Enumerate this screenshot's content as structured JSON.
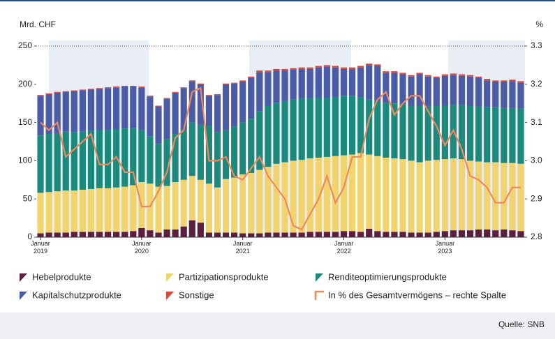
{
  "chart_data": {
    "type": "bar",
    "stacked": true,
    "y_label": "Mrd. CHF",
    "y2_label": "%",
    "source": "Quelle: SNB",
    "categories": [
      "Januar 2019",
      null,
      null,
      null,
      null,
      null,
      null,
      null,
      null,
      null,
      null,
      null,
      "Januar 2020",
      null,
      null,
      null,
      null,
      null,
      null,
      null,
      null,
      null,
      null,
      null,
      "Januar 2021",
      null,
      null,
      null,
      null,
      null,
      null,
      null,
      null,
      null,
      null,
      null,
      "Januar 2022",
      null,
      null,
      null,
      null,
      null,
      null,
      null,
      null,
      null,
      null,
      null,
      "Januar 2023",
      null,
      null,
      null,
      null,
      null,
      null,
      null,
      null,
      null
    ],
    "ylim": [
      0,
      250
    ],
    "yticks": [
      0,
      50,
      100,
      150,
      200,
      250
    ],
    "y2lim": [
      2.8,
      3.3
    ],
    "y2ticks": [
      2.8,
      2.9,
      {
        "value": 3.0,
        "label": "3.0"
      },
      3.1,
      3.2,
      3.3
    ],
    "series": [
      {
        "name": "Hebelprodukte",
        "color": "#5c1f40",
        "values": [
          5,
          6,
          6,
          6,
          7,
          7,
          7,
          7,
          7,
          7,
          7,
          8,
          12,
          9,
          6,
          10,
          10,
          14,
          22,
          19,
          6,
          6,
          6,
          6,
          5,
          5,
          5,
          6,
          6,
          6,
          6,
          6,
          7,
          7,
          7,
          7,
          8,
          8,
          7,
          11,
          8,
          7,
          7,
          7,
          6,
          6,
          6,
          7,
          8,
          9,
          9,
          9,
          10,
          10,
          9,
          10,
          9,
          8
        ]
      },
      {
        "name": "Partizipationsprodukte",
        "color": "#f2d46e",
        "values": [
          53,
          53,
          54,
          55,
          54,
          55,
          56,
          57,
          57,
          58,
          59,
          60,
          60,
          61,
          60,
          57,
          62,
          61,
          58,
          56,
          64,
          59,
          70,
          72,
          77,
          79,
          83,
          86,
          90,
          92,
          94,
          95,
          96,
          97,
          98,
          99,
          99,
          100,
          103,
          97,
          98,
          97,
          96,
          95,
          94,
          92,
          94,
          94,
          94,
          94,
          93,
          91,
          89,
          88,
          89,
          87,
          88,
          88
        ]
      },
      {
        "name": "Renditeoptimierungsprodukte",
        "color": "#1b8a7c",
        "values": [
          75,
          76,
          76,
          77,
          76,
          76,
          76,
          76,
          76,
          76,
          76,
          75,
          68,
          62,
          56,
          61,
          63,
          65,
          70,
          72,
          76,
          72,
          64,
          67,
          68,
          71,
          77,
          80,
          80,
          80,
          80,
          80,
          79,
          78,
          77,
          77,
          78,
          77,
          73,
          72,
          72,
          72,
          72,
          72,
          72,
          74,
          71,
          71,
          70,
          70,
          71,
          72,
          72,
          72,
          72,
          72,
          72,
          72
        ]
      },
      {
        "name": "Kapitalschutzprodukte",
        "color": "#4a5ba8",
        "values": [
          52,
          52,
          53,
          52,
          54,
          54,
          54,
          54,
          55,
          55,
          55,
          54,
          56,
          52,
          49,
          53,
          54,
          55,
          54,
          53,
          39,
          49,
          60,
          56,
          53,
          53,
          51,
          44,
          42,
          40,
          39,
          39,
          38,
          40,
          41,
          39,
          35,
          35,
          39,
          45,
          46,
          39,
          40,
          39,
          38,
          41,
          39,
          36,
          39,
          39,
          38,
          38,
          37,
          35,
          33,
          34,
          35,
          34
        ]
      },
      {
        "name": "Sonstige",
        "color": "#d9473a",
        "values": [
          1,
          1,
          1,
          1,
          1,
          1,
          1,
          1,
          1,
          1,
          1,
          1,
          1,
          1,
          1,
          1,
          1,
          1,
          1,
          1,
          1,
          1,
          1,
          1,
          2,
          2,
          2,
          2,
          2,
          2,
          2,
          2,
          2,
          2,
          2,
          2,
          2,
          2,
          2,
          2,
          2,
          2,
          2,
          2,
          2,
          2,
          2,
          2,
          2,
          2,
          2,
          2,
          2,
          2,
          2,
          2,
          2,
          2
        ]
      },
      {
        "name": "In % des Gesamtvermögens – rechte Spalte",
        "type": "line",
        "axis": "y2",
        "color": "#f0885c",
        "values": [
          3.1,
          3.08,
          3.1,
          3.01,
          3.03,
          3.05,
          3.07,
          2.99,
          2.99,
          3.01,
          2.97,
          2.97,
          2.88,
          2.88,
          2.92,
          2.97,
          3.06,
          3.08,
          3.18,
          3.19,
          3.0,
          3.0,
          3.01,
          2.96,
          2.95,
          2.98,
          3.01,
          2.96,
          2.93,
          2.9,
          2.83,
          2.82,
          2.86,
          2.9,
          2.96,
          2.89,
          2.93,
          3.01,
          3.01,
          3.11,
          3.16,
          3.18,
          3.12,
          3.15,
          3.17,
          3.17,
          3.13,
          3.09,
          3.04,
          3.08,
          3.03,
          2.96,
          2.95,
          2.93,
          2.89,
          2.89,
          2.93,
          2.93
        ]
      }
    ]
  }
}
